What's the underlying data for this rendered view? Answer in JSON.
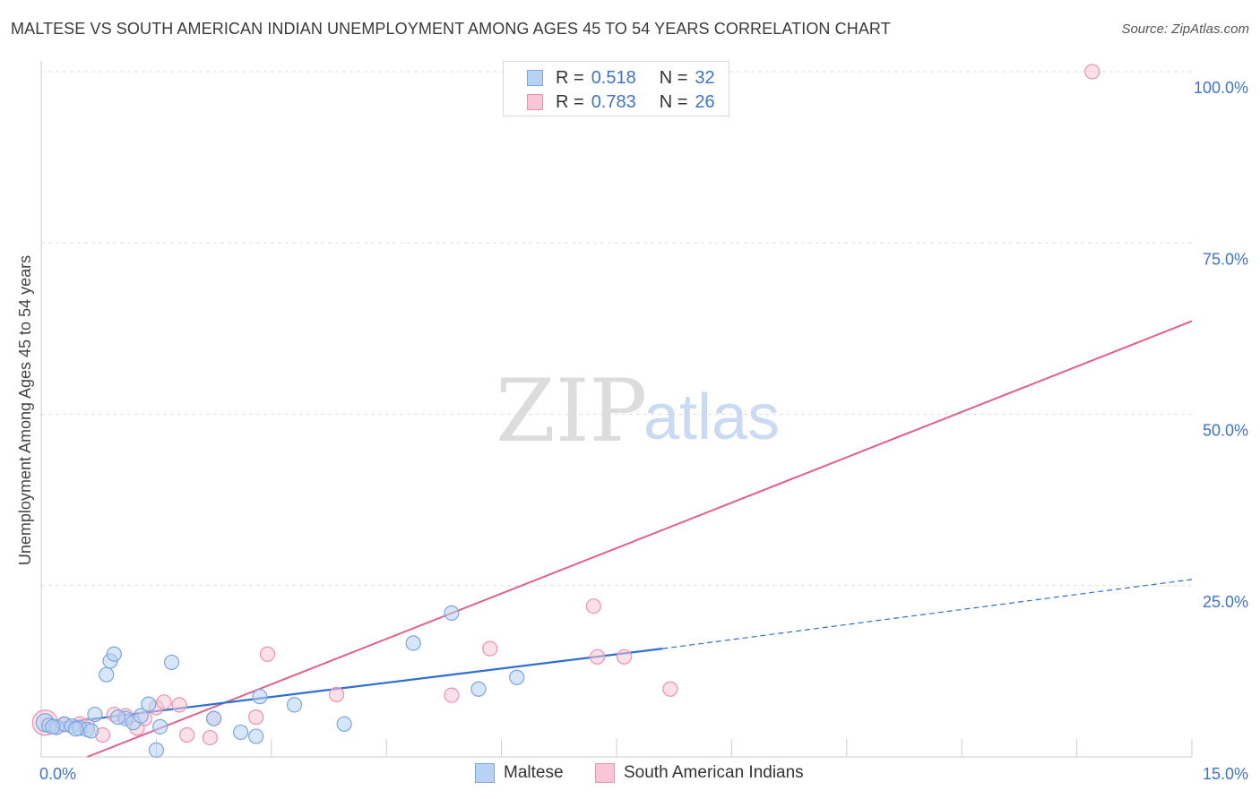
{
  "title": "MALTESE VS SOUTH AMERICAN INDIAN UNEMPLOYMENT AMONG AGES 45 TO 54 YEARS CORRELATION CHART",
  "source": "Source: ZipAtlas.com",
  "watermark": {
    "zip": "ZIP",
    "atlas": "atlas"
  },
  "legend_top": [
    {
      "r_label": "R =",
      "r_value": "0.518",
      "n_label": "N =",
      "n_value": "32"
    },
    {
      "r_label": "R =",
      "r_value": "0.783",
      "n_label": "N =",
      "n_value": "26"
    }
  ],
  "colors": {
    "maltese_fill": "#b8d2f4",
    "maltese_stroke": "#7ba5df",
    "maltese_line": "#2f6fd0",
    "sai_fill": "#f8c6d6",
    "sai_stroke": "#e993b0",
    "sai_line": "#e0608f",
    "grid": "#dddddd",
    "axis_text": "#3e73c8"
  },
  "chart_data": {
    "type": "scatter",
    "title": "MALTESE VS SOUTH AMERICAN INDIAN UNEMPLOYMENT AMONG AGES 45 TO 54 YEARS CORRELATION CHART",
    "xlabel": "",
    "ylabel": "Unemployment Among Ages 45 to 54 years",
    "xlim": [
      0,
      15
    ],
    "ylim": [
      0,
      100
    ],
    "x_tick_labels": [
      "0.0%",
      "15.0%"
    ],
    "y_ticks": [
      25,
      50,
      75,
      100
    ],
    "y_tick_labels": [
      "25.0%",
      "50.0%",
      "75.0%",
      "100.0%"
    ],
    "legend_position": "top-center",
    "series": [
      {
        "name": "Maltese",
        "r": 0.518,
        "n": 32,
        "points": [
          [
            0.05,
            5.0
          ],
          [
            0.1,
            4.6
          ],
          [
            0.2,
            4.3
          ],
          [
            0.3,
            4.8
          ],
          [
            0.4,
            4.5
          ],
          [
            0.5,
            4.2
          ],
          [
            0.6,
            4.0
          ],
          [
            0.7,
            6.2
          ],
          [
            0.85,
            12.0
          ],
          [
            0.9,
            14.0
          ],
          [
            0.95,
            15.0
          ],
          [
            1.1,
            5.6
          ],
          [
            1.2,
            5.0
          ],
          [
            1.3,
            6.0
          ],
          [
            1.4,
            7.7
          ],
          [
            1.55,
            4.4
          ],
          [
            1.5,
            1.0
          ],
          [
            1.7,
            13.8
          ],
          [
            2.25,
            5.6
          ],
          [
            2.6,
            3.6
          ],
          [
            2.8,
            3.0
          ],
          [
            2.85,
            8.8
          ],
          [
            3.3,
            7.6
          ],
          [
            3.95,
            4.8
          ],
          [
            4.85,
            16.6
          ],
          [
            5.35,
            21.0
          ],
          [
            5.7,
            9.9
          ],
          [
            6.2,
            11.6
          ],
          [
            0.15,
            4.4
          ],
          [
            0.45,
            4.1
          ],
          [
            1.0,
            5.8
          ],
          [
            0.65,
            3.8
          ]
        ],
        "trend": {
          "x0": 0,
          "y0": 4.6,
          "x1": 8.1,
          "y1": 15.8,
          "dashed_to_x": 15.0,
          "dashed_to_y": 25.9
        }
      },
      {
        "name": "South American Indians",
        "r": 0.783,
        "n": 26,
        "points": [
          [
            0.05,
            5.0
          ],
          [
            0.3,
            4.7
          ],
          [
            0.5,
            4.8
          ],
          [
            0.6,
            4.6
          ],
          [
            0.8,
            3.2
          ],
          [
            0.95,
            6.2
          ],
          [
            1.1,
            6.0
          ],
          [
            1.25,
            4.2
          ],
          [
            1.35,
            5.6
          ],
          [
            1.5,
            7.2
          ],
          [
            1.6,
            8.0
          ],
          [
            1.8,
            7.6
          ],
          [
            1.9,
            3.2
          ],
          [
            2.2,
            2.8
          ],
          [
            2.25,
            5.6
          ],
          [
            2.8,
            5.8
          ],
          [
            2.95,
            15.0
          ],
          [
            3.85,
            9.1
          ],
          [
            5.35,
            9.0
          ],
          [
            5.85,
            15.8
          ],
          [
            7.2,
            22.0
          ],
          [
            7.25,
            14.6
          ],
          [
            7.6,
            14.6
          ],
          [
            8.2,
            9.9
          ],
          [
            13.7,
            100.0
          ],
          [
            0.2,
            4.4
          ]
        ],
        "trend": {
          "x0": 0.6,
          "y0": 0.0,
          "x1": 15.0,
          "y1": 63.6
        }
      }
    ]
  },
  "legend_bottom": [
    {
      "label": "Maltese"
    },
    {
      "label": "South American Indians"
    }
  ]
}
